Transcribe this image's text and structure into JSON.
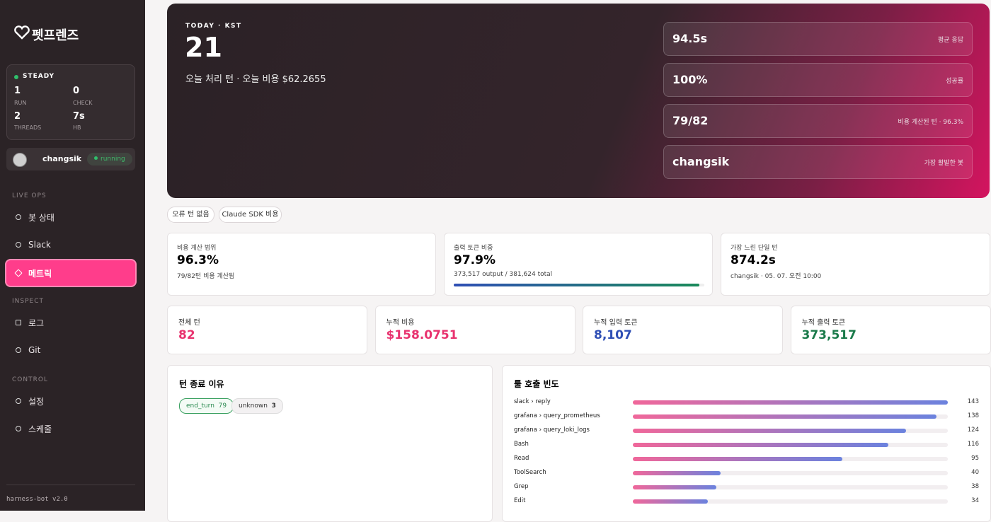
{
  "brand": "펫프렌즈",
  "sidebar": {
    "status": {
      "label": "STEADY",
      "stats": [
        {
          "value": "1",
          "label": "RUN"
        },
        {
          "value": "0",
          "label": "CHECK"
        },
        {
          "value": "2",
          "label": "THREADS"
        },
        {
          "value": "7s",
          "label": "HB"
        }
      ]
    },
    "user": {
      "name": "changsik",
      "state": "running"
    },
    "sections": [
      {
        "title": "LIVE OPS",
        "items": [
          "봇 상태",
          "Slack",
          "메트릭"
        ]
      },
      {
        "title": "INSPECT",
        "items": [
          "로그",
          "Git"
        ]
      },
      {
        "title": "CONTROL",
        "items": [
          "설정",
          "스케줄"
        ]
      }
    ],
    "version": "harness-bot v2.0"
  },
  "hero": {
    "eyebrow": "TODAY · KST",
    "value": "21",
    "subtitle": "오늘 처리 턴 · 오늘 비용 $62.2655",
    "stats": [
      {
        "value": "94.5s",
        "label": "평균 응답"
      },
      {
        "value": "100%",
        "label": "성공률"
      },
      {
        "value": "79/82",
        "label": "비용 계산된 턴 · 96.3%"
      },
      {
        "value": "changsik",
        "label": "가장 활발한 봇"
      }
    ]
  },
  "chips": [
    "오류 턴 없음",
    "Claude SDK 비용"
  ],
  "summary": [
    {
      "label": "비용 계산 범위",
      "value": "96.3%",
      "note": "79/82턴 비용 계산됨"
    },
    {
      "label": "출력 토큰 비중",
      "value": "97.9%",
      "note": "373,517 output / 381,624 total",
      "progress": 97.9
    },
    {
      "label": "가장 느린 단일 턴",
      "value": "874.2s",
      "note": "changsik · 05. 07. 오전 10:00"
    }
  ],
  "totals": [
    {
      "label": "전체 턴",
      "value": "82",
      "color": "#e8336f"
    },
    {
      "label": "누적 비용",
      "value": "$158.0751",
      "color": "#e8336f"
    },
    {
      "label": "누적 입력 토큰",
      "value": "8,107",
      "color": "#2f4fb5"
    },
    {
      "label": "누적 출력 토큰",
      "value": "373,517",
      "color": "#1a7a4a"
    }
  ],
  "end_reasons": {
    "title": "턴 종료 이유",
    "items": [
      {
        "name": "end_turn",
        "count": 79
      },
      {
        "name": "unknown",
        "count": 3
      }
    ]
  },
  "tools": {
    "title": "툴 호출 빈도",
    "categories": [
      "slack › reply",
      "grafana › query_prometheus",
      "grafana › query_loki_logs",
      "Bash",
      "Read",
      "ToolSearch",
      "Grep",
      "Edit"
    ],
    "values": [
      143,
      138,
      124,
      116,
      95,
      40,
      38,
      34
    ]
  }
}
